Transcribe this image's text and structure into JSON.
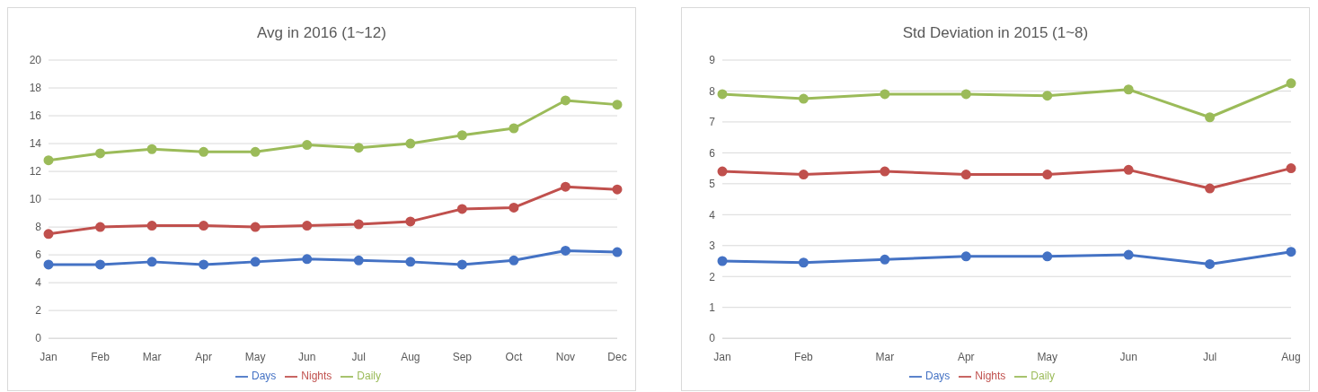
{
  "chart_data": [
    {
      "type": "line",
      "title": "Avg in 2016 (1~12)",
      "categories": [
        "Jan",
        "Feb",
        "Mar",
        "Apr",
        "May",
        "Jun",
        "Jul",
        "Aug",
        "Sep",
        "Oct",
        "Nov",
        "Dec"
      ],
      "series": [
        {
          "name": "Days",
          "color": "#4472c4",
          "values": [
            5.3,
            5.3,
            5.5,
            5.3,
            5.5,
            5.7,
            5.6,
            5.5,
            5.3,
            5.6,
            6.3,
            6.2
          ]
        },
        {
          "name": "Nights",
          "color": "#c0504d",
          "values": [
            7.5,
            8.0,
            8.1,
            8.1,
            8.0,
            8.1,
            8.2,
            8.4,
            9.3,
            9.4,
            10.9,
            10.7
          ]
        },
        {
          "name": "Daily",
          "color": "#9bbb59",
          "values": [
            12.8,
            13.3,
            13.6,
            13.4,
            13.4,
            13.9,
            13.7,
            14.0,
            14.6,
            15.1,
            17.1,
            16.8
          ]
        }
      ],
      "ylim": [
        0,
        20
      ],
      "yticks": [
        0,
        2,
        4,
        6,
        8,
        10,
        12,
        14,
        16,
        18,
        20
      ],
      "grid": "y",
      "legend": "bottom",
      "marker": "circle",
      "line_style": "solid"
    },
    {
      "type": "line",
      "title": "Std Deviation in 2015 (1~8)",
      "categories": [
        "Jan",
        "Feb",
        "Mar",
        "Apr",
        "May",
        "Jun",
        "Jul",
        "Aug"
      ],
      "series": [
        {
          "name": "Days",
          "color": "#4472c4",
          "values": [
            2.5,
            2.45,
            2.55,
            2.65,
            2.65,
            2.7,
            2.4,
            2.8
          ]
        },
        {
          "name": "Nights",
          "color": "#c0504d",
          "values": [
            5.4,
            5.3,
            5.4,
            5.3,
            5.3,
            5.45,
            4.85,
            5.5
          ]
        },
        {
          "name": "Daily",
          "color": "#9bbb59",
          "values": [
            7.9,
            7.75,
            7.9,
            7.9,
            7.85,
            8.05,
            7.15,
            8.25
          ]
        }
      ],
      "ylim": [
        0,
        9
      ],
      "yticks": [
        0,
        1,
        2,
        3,
        4,
        5,
        6,
        7,
        8,
        9
      ],
      "grid": "y",
      "legend": "bottom",
      "marker": "circle",
      "line_style": "solid"
    }
  ]
}
